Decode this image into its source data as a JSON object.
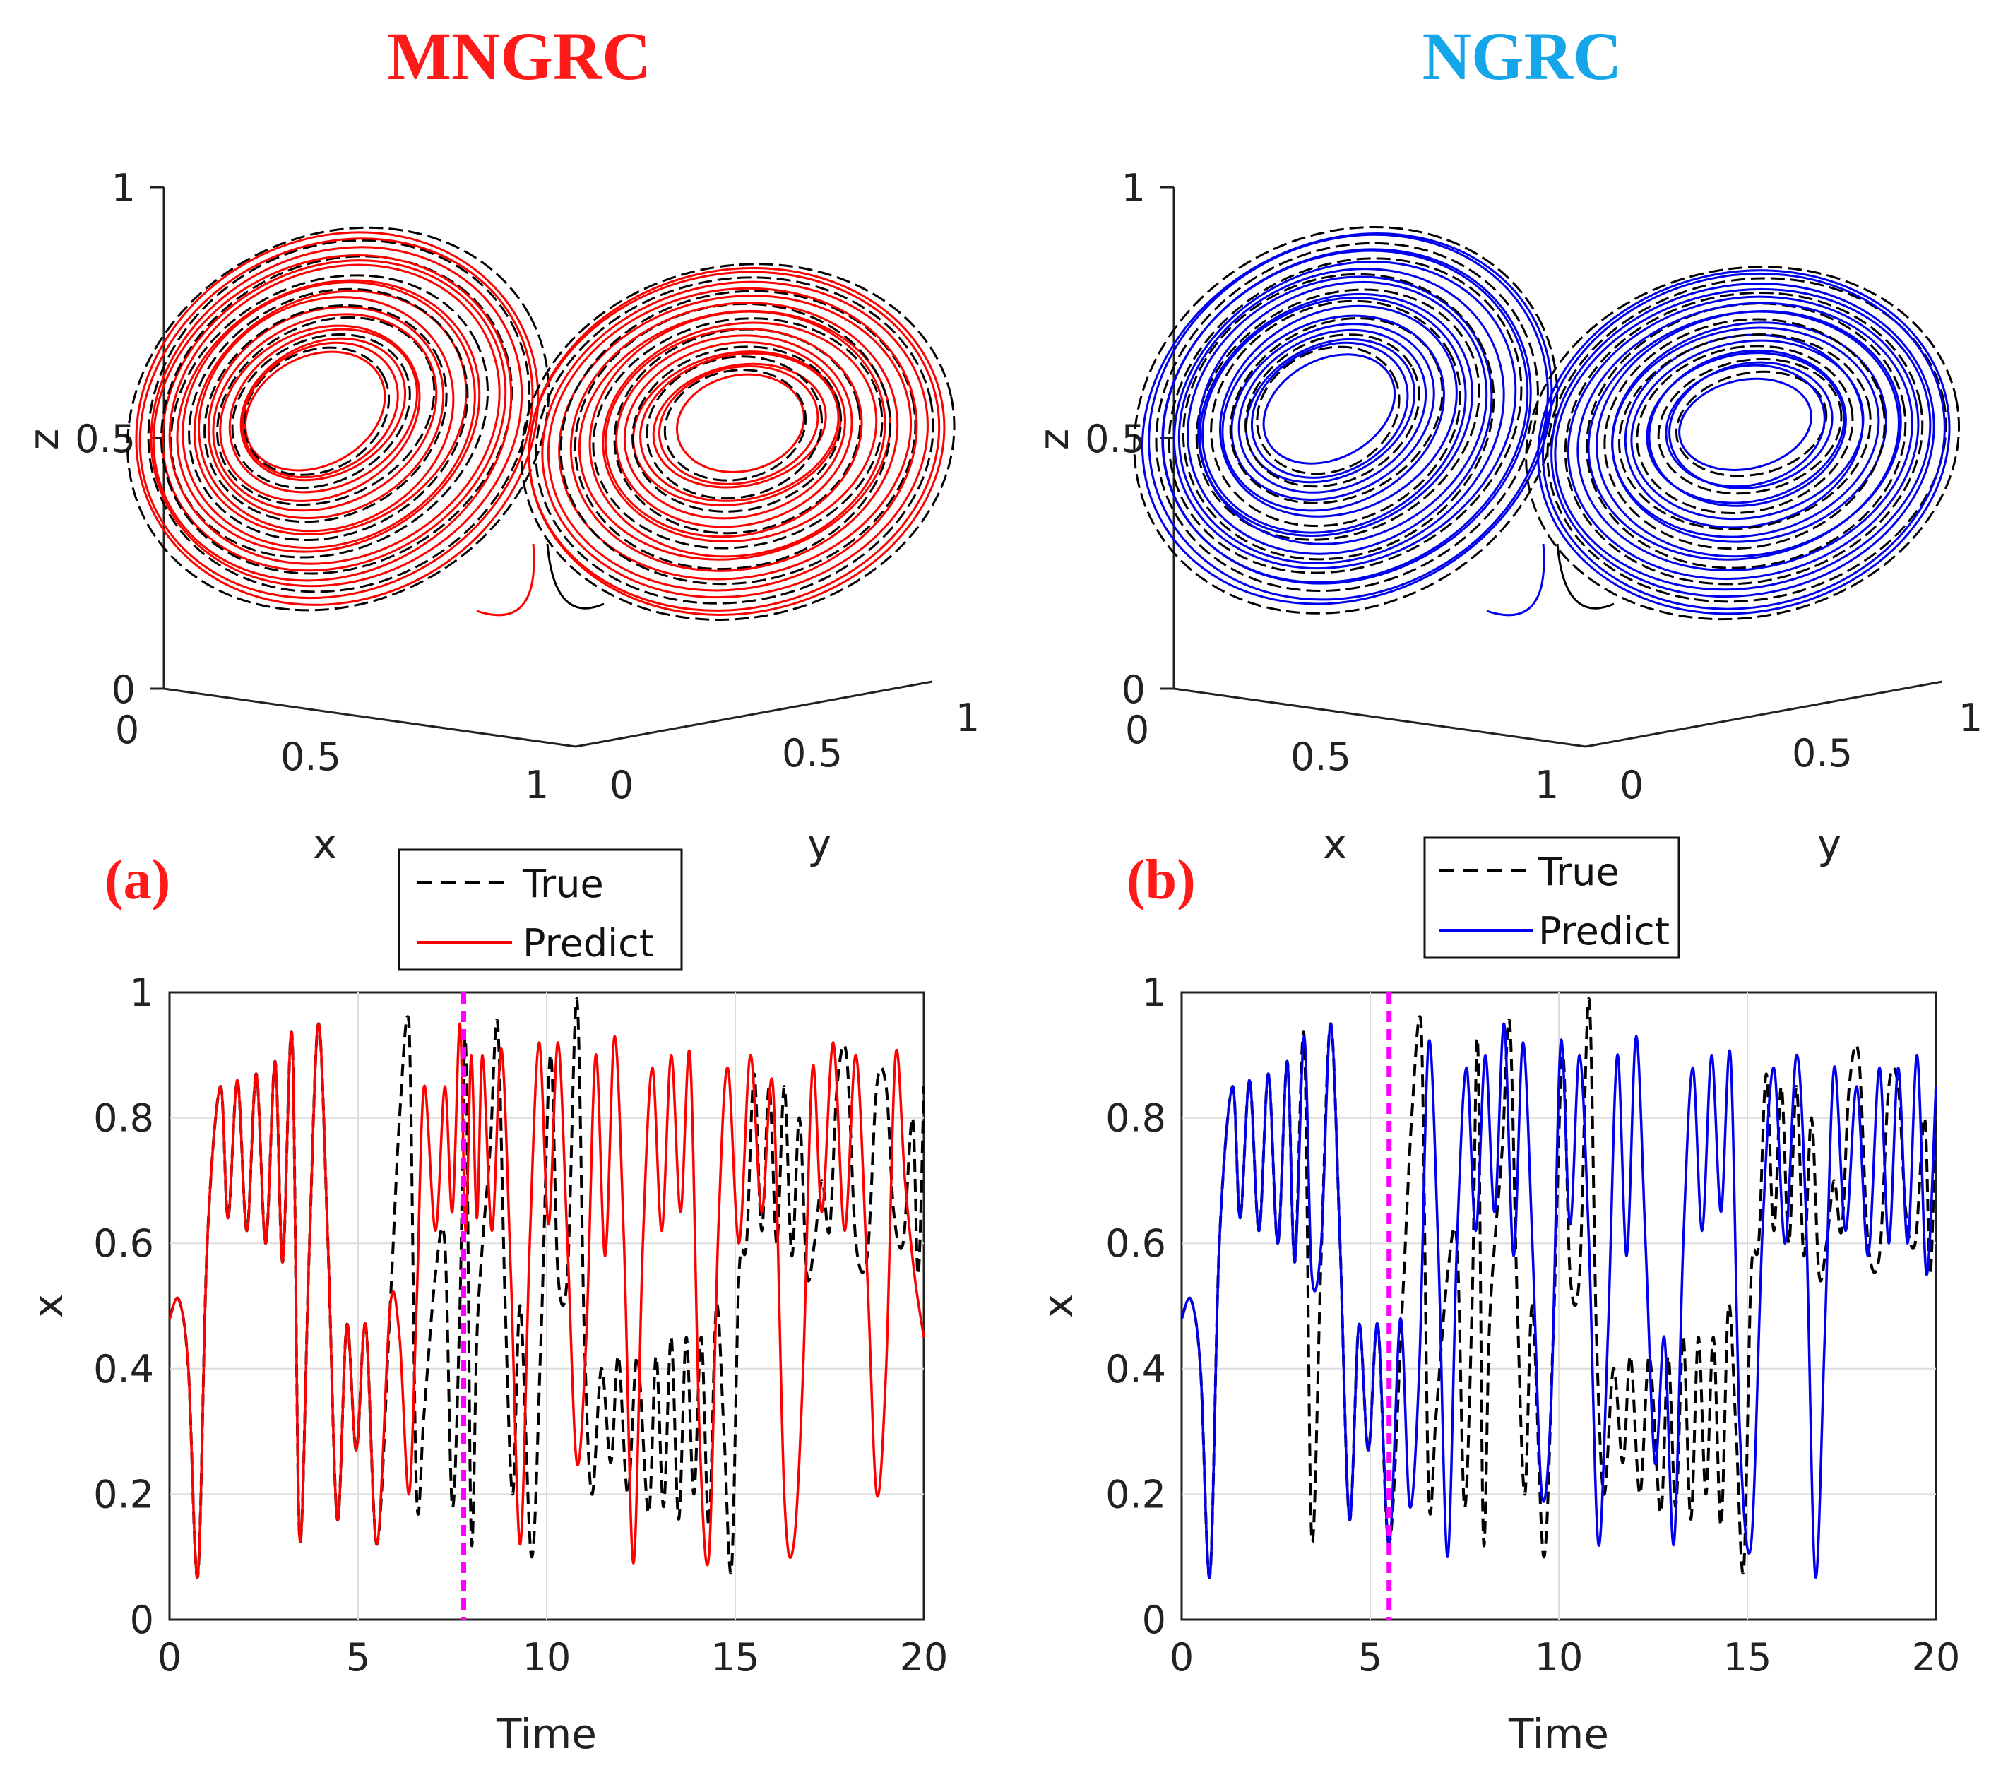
{
  "panels": [
    {
      "id": "a",
      "method_title": "MNGRC",
      "panel_label": "(a)",
      "colors": {
        "title": "#ff1a1a",
        "label": "#ff1a1a",
        "predict": "#ff0000",
        "true": "#000000",
        "divider": "#ff00ff"
      },
      "attractor": {
        "axis_labels": {
          "x": "x",
          "y": "y",
          "z": "z"
        },
        "z_ticks": [
          "0",
          "0.5",
          "1"
        ],
        "x_ticks": [
          "0",
          "0.5",
          "1"
        ],
        "y_ticks": [
          "0",
          "0.5",
          "1"
        ],
        "range": [
          0,
          1
        ]
      },
      "legend": {
        "true": "True",
        "predict": "Predict"
      }
    },
    {
      "id": "b",
      "method_title": "NGRC",
      "panel_label": "(b)",
      "colors": {
        "title": "#14a6e8",
        "label": "#ff1a1a",
        "predict": "#0000ee",
        "true": "#000000",
        "divider": "#ff00ff"
      },
      "attractor": {
        "axis_labels": {
          "x": "x",
          "y": "y",
          "z": "z"
        },
        "z_ticks": [
          "0",
          "0.5",
          "1"
        ],
        "x_ticks": [
          "0",
          "0.5",
          "1"
        ],
        "y_ticks": [
          "0",
          "0.5",
          "1"
        ],
        "range": [
          0,
          1
        ]
      },
      "legend": {
        "true": "True",
        "predict": "Predict"
      }
    }
  ],
  "chart_data": [
    {
      "type": "line",
      "title": "MNGRC",
      "xlabel": "Time",
      "ylabel": "x",
      "xlim": [
        0,
        20
      ],
      "ylim": [
        0,
        1
      ],
      "xticks": [
        "0",
        "5",
        "10",
        "15",
        "20"
      ],
      "yticks": [
        "0",
        "0.2",
        "0.4",
        "0.6",
        "0.8",
        "1"
      ],
      "grid": true,
      "legend": "outside-top",
      "divider_time": 7.8,
      "series": [
        {
          "name": "True",
          "style": "dashed",
          "color": "#000000",
          "x": [
            0,
            0.25,
            0.5,
            0.75,
            1.0,
            1.35,
            1.55,
            1.8,
            2.05,
            2.3,
            2.55,
            2.8,
            3.0,
            3.25,
            3.45,
            3.7,
            3.95,
            4.2,
            4.45,
            4.7,
            4.95,
            5.2,
            5.5,
            5.85,
            6.1,
            6.35,
            6.55,
            6.75,
            7.05,
            7.3,
            7.5,
            7.7,
            7.85,
            8.0,
            8.15,
            8.3,
            8.5,
            8.7,
            8.9,
            9.1,
            9.3,
            9.6,
            9.85,
            10.1,
            10.3,
            10.55,
            10.8,
            11.0,
            11.2,
            11.45,
            11.7,
            11.9,
            12.15,
            12.4,
            12.7,
            12.9,
            13.1,
            13.3,
            13.5,
            13.7,
            13.9,
            14.1,
            14.3,
            14.5,
            14.7,
            14.9,
            15.1,
            15.3,
            15.5,
            15.7,
            15.9,
            16.1,
            16.3,
            16.5,
            16.7,
            16.9,
            17.1,
            17.3,
            17.5,
            17.7,
            17.95,
            18.2,
            18.5,
            18.75,
            19.0,
            19.2,
            19.45,
            19.7,
            19.85,
            20.0
          ],
          "y": [
            0.48,
            0.51,
            0.4,
            0.07,
            0.6,
            0.85,
            0.64,
            0.86,
            0.62,
            0.87,
            0.6,
            0.89,
            0.57,
            0.93,
            0.13,
            0.58,
            0.95,
            0.6,
            0.16,
            0.47,
            0.27,
            0.47,
            0.12,
            0.5,
            0.8,
            0.95,
            0.2,
            0.33,
            0.55,
            0.6,
            0.18,
            0.5,
            0.92,
            0.13,
            0.45,
            0.6,
            0.75,
            0.95,
            0.5,
            0.2,
            0.5,
            0.1,
            0.45,
            0.9,
            0.55,
            0.55,
            0.99,
            0.45,
            0.2,
            0.4,
            0.25,
            0.42,
            0.2,
            0.42,
            0.17,
            0.42,
            0.18,
            0.45,
            0.16,
            0.45,
            0.2,
            0.45,
            0.15,
            0.5,
            0.3,
            0.08,
            0.55,
            0.6,
            0.87,
            0.62,
            0.85,
            0.6,
            0.85,
            0.58,
            0.8,
            0.55,
            0.6,
            0.7,
            0.62,
            0.85,
            0.9,
            0.6,
            0.58,
            0.85,
            0.85,
            0.65,
            0.6,
            0.8,
            0.55,
            0.85
          ]
        },
        {
          "name": "Predict",
          "style": "solid",
          "color": "#ff0000",
          "x": [
            0,
            0.25,
            0.5,
            0.75,
            1.0,
            1.35,
            1.55,
            1.8,
            2.05,
            2.3,
            2.55,
            2.8,
            3.0,
            3.25,
            3.45,
            3.7,
            3.95,
            4.2,
            4.45,
            4.7,
            4.95,
            5.2,
            5.5,
            5.85,
            6.1,
            6.35,
            6.55,
            6.75,
            7.05,
            7.3,
            7.5,
            7.7,
            7.85,
            8.0,
            8.15,
            8.3,
            8.55,
            8.8,
            9.05,
            9.3,
            9.55,
            9.8,
            10.05,
            10.3,
            10.55,
            10.8,
            11.05,
            11.3,
            11.55,
            11.8,
            12.05,
            12.3,
            12.55,
            12.8,
            13.05,
            13.3,
            13.55,
            13.8,
            14.05,
            14.3,
            14.55,
            14.8,
            15.1,
            15.4,
            15.7,
            16.0,
            16.3,
            16.55,
            16.8,
            17.05,
            17.3,
            17.6,
            17.9,
            18.2,
            18.5,
            18.75,
            19.0,
            19.25,
            19.5,
            19.75,
            20.0
          ],
          "y": [
            0.48,
            0.51,
            0.4,
            0.07,
            0.6,
            0.85,
            0.64,
            0.86,
            0.62,
            0.87,
            0.6,
            0.89,
            0.57,
            0.93,
            0.13,
            0.58,
            0.95,
            0.6,
            0.16,
            0.47,
            0.27,
            0.47,
            0.12,
            0.5,
            0.45,
            0.2,
            0.5,
            0.85,
            0.62,
            0.85,
            0.65,
            0.95,
            0.62,
            0.9,
            0.64,
            0.9,
            0.62,
            0.91,
            0.55,
            0.12,
            0.6,
            0.92,
            0.63,
            0.92,
            0.6,
            0.25,
            0.45,
            0.9,
            0.58,
            0.93,
            0.6,
            0.09,
            0.6,
            0.88,
            0.62,
            0.9,
            0.65,
            0.9,
            0.3,
            0.1,
            0.62,
            0.88,
            0.6,
            0.9,
            0.65,
            0.85,
            0.2,
            0.12,
            0.4,
            0.88,
            0.65,
            0.92,
            0.62,
            0.9,
            0.55,
            0.2,
            0.4,
            0.9,
            0.7,
            0.55,
            0.45
          ]
        }
      ]
    },
    {
      "type": "line",
      "title": "NGRC",
      "xlabel": "Time",
      "ylabel": "x",
      "xlim": [
        0,
        20
      ],
      "ylim": [
        0,
        1
      ],
      "xticks": [
        "0",
        "5",
        "10",
        "15",
        "20"
      ],
      "yticks": [
        "0",
        "0.2",
        "0.4",
        "0.6",
        "0.8",
        "1"
      ],
      "grid": true,
      "legend": "outside-top",
      "divider_time": 5.5,
      "series": [
        {
          "name": "True",
          "style": "dashed",
          "color": "#000000",
          "x": [
            0,
            0.25,
            0.5,
            0.75,
            1.0,
            1.35,
            1.55,
            1.8,
            2.05,
            2.3,
            2.55,
            2.8,
            3.0,
            3.25,
            3.45,
            3.7,
            3.95,
            4.2,
            4.45,
            4.7,
            4.95,
            5.2,
            5.5,
            5.85,
            6.1,
            6.35,
            6.55,
            6.75,
            7.05,
            7.3,
            7.5,
            7.7,
            7.85,
            8.0,
            8.15,
            8.3,
            8.5,
            8.7,
            8.9,
            9.1,
            9.3,
            9.6,
            9.85,
            10.1,
            10.3,
            10.55,
            10.8,
            11.0,
            11.2,
            11.45,
            11.7,
            11.9,
            12.15,
            12.4,
            12.7,
            12.9,
            13.1,
            13.3,
            13.5,
            13.7,
            13.9,
            14.1,
            14.3,
            14.5,
            14.7,
            14.9,
            15.1,
            15.3,
            15.5,
            15.7,
            15.9,
            16.1,
            16.3,
            16.5,
            16.7,
            16.9,
            17.1,
            17.3,
            17.5,
            17.7,
            17.95,
            18.2,
            18.5,
            18.75,
            19.0,
            19.2,
            19.45,
            19.7,
            19.85,
            20.0
          ],
          "y": [
            0.48,
            0.51,
            0.4,
            0.07,
            0.6,
            0.85,
            0.64,
            0.86,
            0.62,
            0.87,
            0.6,
            0.89,
            0.57,
            0.93,
            0.13,
            0.58,
            0.95,
            0.6,
            0.16,
            0.47,
            0.27,
            0.47,
            0.12,
            0.5,
            0.8,
            0.95,
            0.2,
            0.33,
            0.55,
            0.6,
            0.18,
            0.5,
            0.92,
            0.13,
            0.45,
            0.6,
            0.75,
            0.95,
            0.5,
            0.2,
            0.5,
            0.1,
            0.45,
            0.9,
            0.55,
            0.55,
            0.99,
            0.45,
            0.2,
            0.4,
            0.25,
            0.42,
            0.2,
            0.42,
            0.17,
            0.42,
            0.18,
            0.45,
            0.16,
            0.45,
            0.2,
            0.45,
            0.15,
            0.5,
            0.3,
            0.08,
            0.55,
            0.6,
            0.87,
            0.62,
            0.85,
            0.6,
            0.85,
            0.58,
            0.8,
            0.55,
            0.6,
            0.7,
            0.62,
            0.85,
            0.9,
            0.6,
            0.58,
            0.85,
            0.85,
            0.65,
            0.6,
            0.8,
            0.55,
            0.85
          ]
        },
        {
          "name": "Predict",
          "style": "solid",
          "color": "#0000ee",
          "x": [
            0,
            0.25,
            0.5,
            0.75,
            1.0,
            1.35,
            1.55,
            1.8,
            2.05,
            2.3,
            2.55,
            2.8,
            3.0,
            3.25,
            3.45,
            3.7,
            3.95,
            4.2,
            4.45,
            4.7,
            4.95,
            5.2,
            5.5,
            5.8,
            6.05,
            6.3,
            6.55,
            6.8,
            7.05,
            7.3,
            7.55,
            7.8,
            8.05,
            8.3,
            8.55,
            8.8,
            9.05,
            9.3,
            9.55,
            9.8,
            10.05,
            10.3,
            10.55,
            10.8,
            11.05,
            11.3,
            11.55,
            11.8,
            12.05,
            12.3,
            12.55,
            12.8,
            13.05,
            13.3,
            13.55,
            13.8,
            14.05,
            14.3,
            14.55,
            14.8,
            15.1,
            15.4,
            15.7,
            16.0,
            16.3,
            16.55,
            16.8,
            17.05,
            17.3,
            17.6,
            17.9,
            18.2,
            18.5,
            18.75,
            19.0,
            19.25,
            19.5,
            19.75,
            20.0
          ],
          "y": [
            0.48,
            0.51,
            0.4,
            0.07,
            0.6,
            0.85,
            0.64,
            0.86,
            0.62,
            0.87,
            0.6,
            0.89,
            0.57,
            0.93,
            0.55,
            0.6,
            0.95,
            0.6,
            0.16,
            0.47,
            0.27,
            0.47,
            0.12,
            0.48,
            0.18,
            0.4,
            0.92,
            0.6,
            0.1,
            0.6,
            0.88,
            0.62,
            0.9,
            0.65,
            0.95,
            0.58,
            0.92,
            0.6,
            0.2,
            0.35,
            0.92,
            0.63,
            0.9,
            0.6,
            0.12,
            0.45,
            0.9,
            0.58,
            0.93,
            0.6,
            0.25,
            0.45,
            0.12,
            0.6,
            0.88,
            0.62,
            0.9,
            0.65,
            0.9,
            0.3,
            0.12,
            0.62,
            0.88,
            0.6,
            0.9,
            0.65,
            0.07,
            0.45,
            0.88,
            0.62,
            0.85,
            0.58,
            0.88,
            0.6,
            0.88,
            0.6,
            0.9,
            0.55,
            0.85
          ]
        }
      ]
    }
  ]
}
